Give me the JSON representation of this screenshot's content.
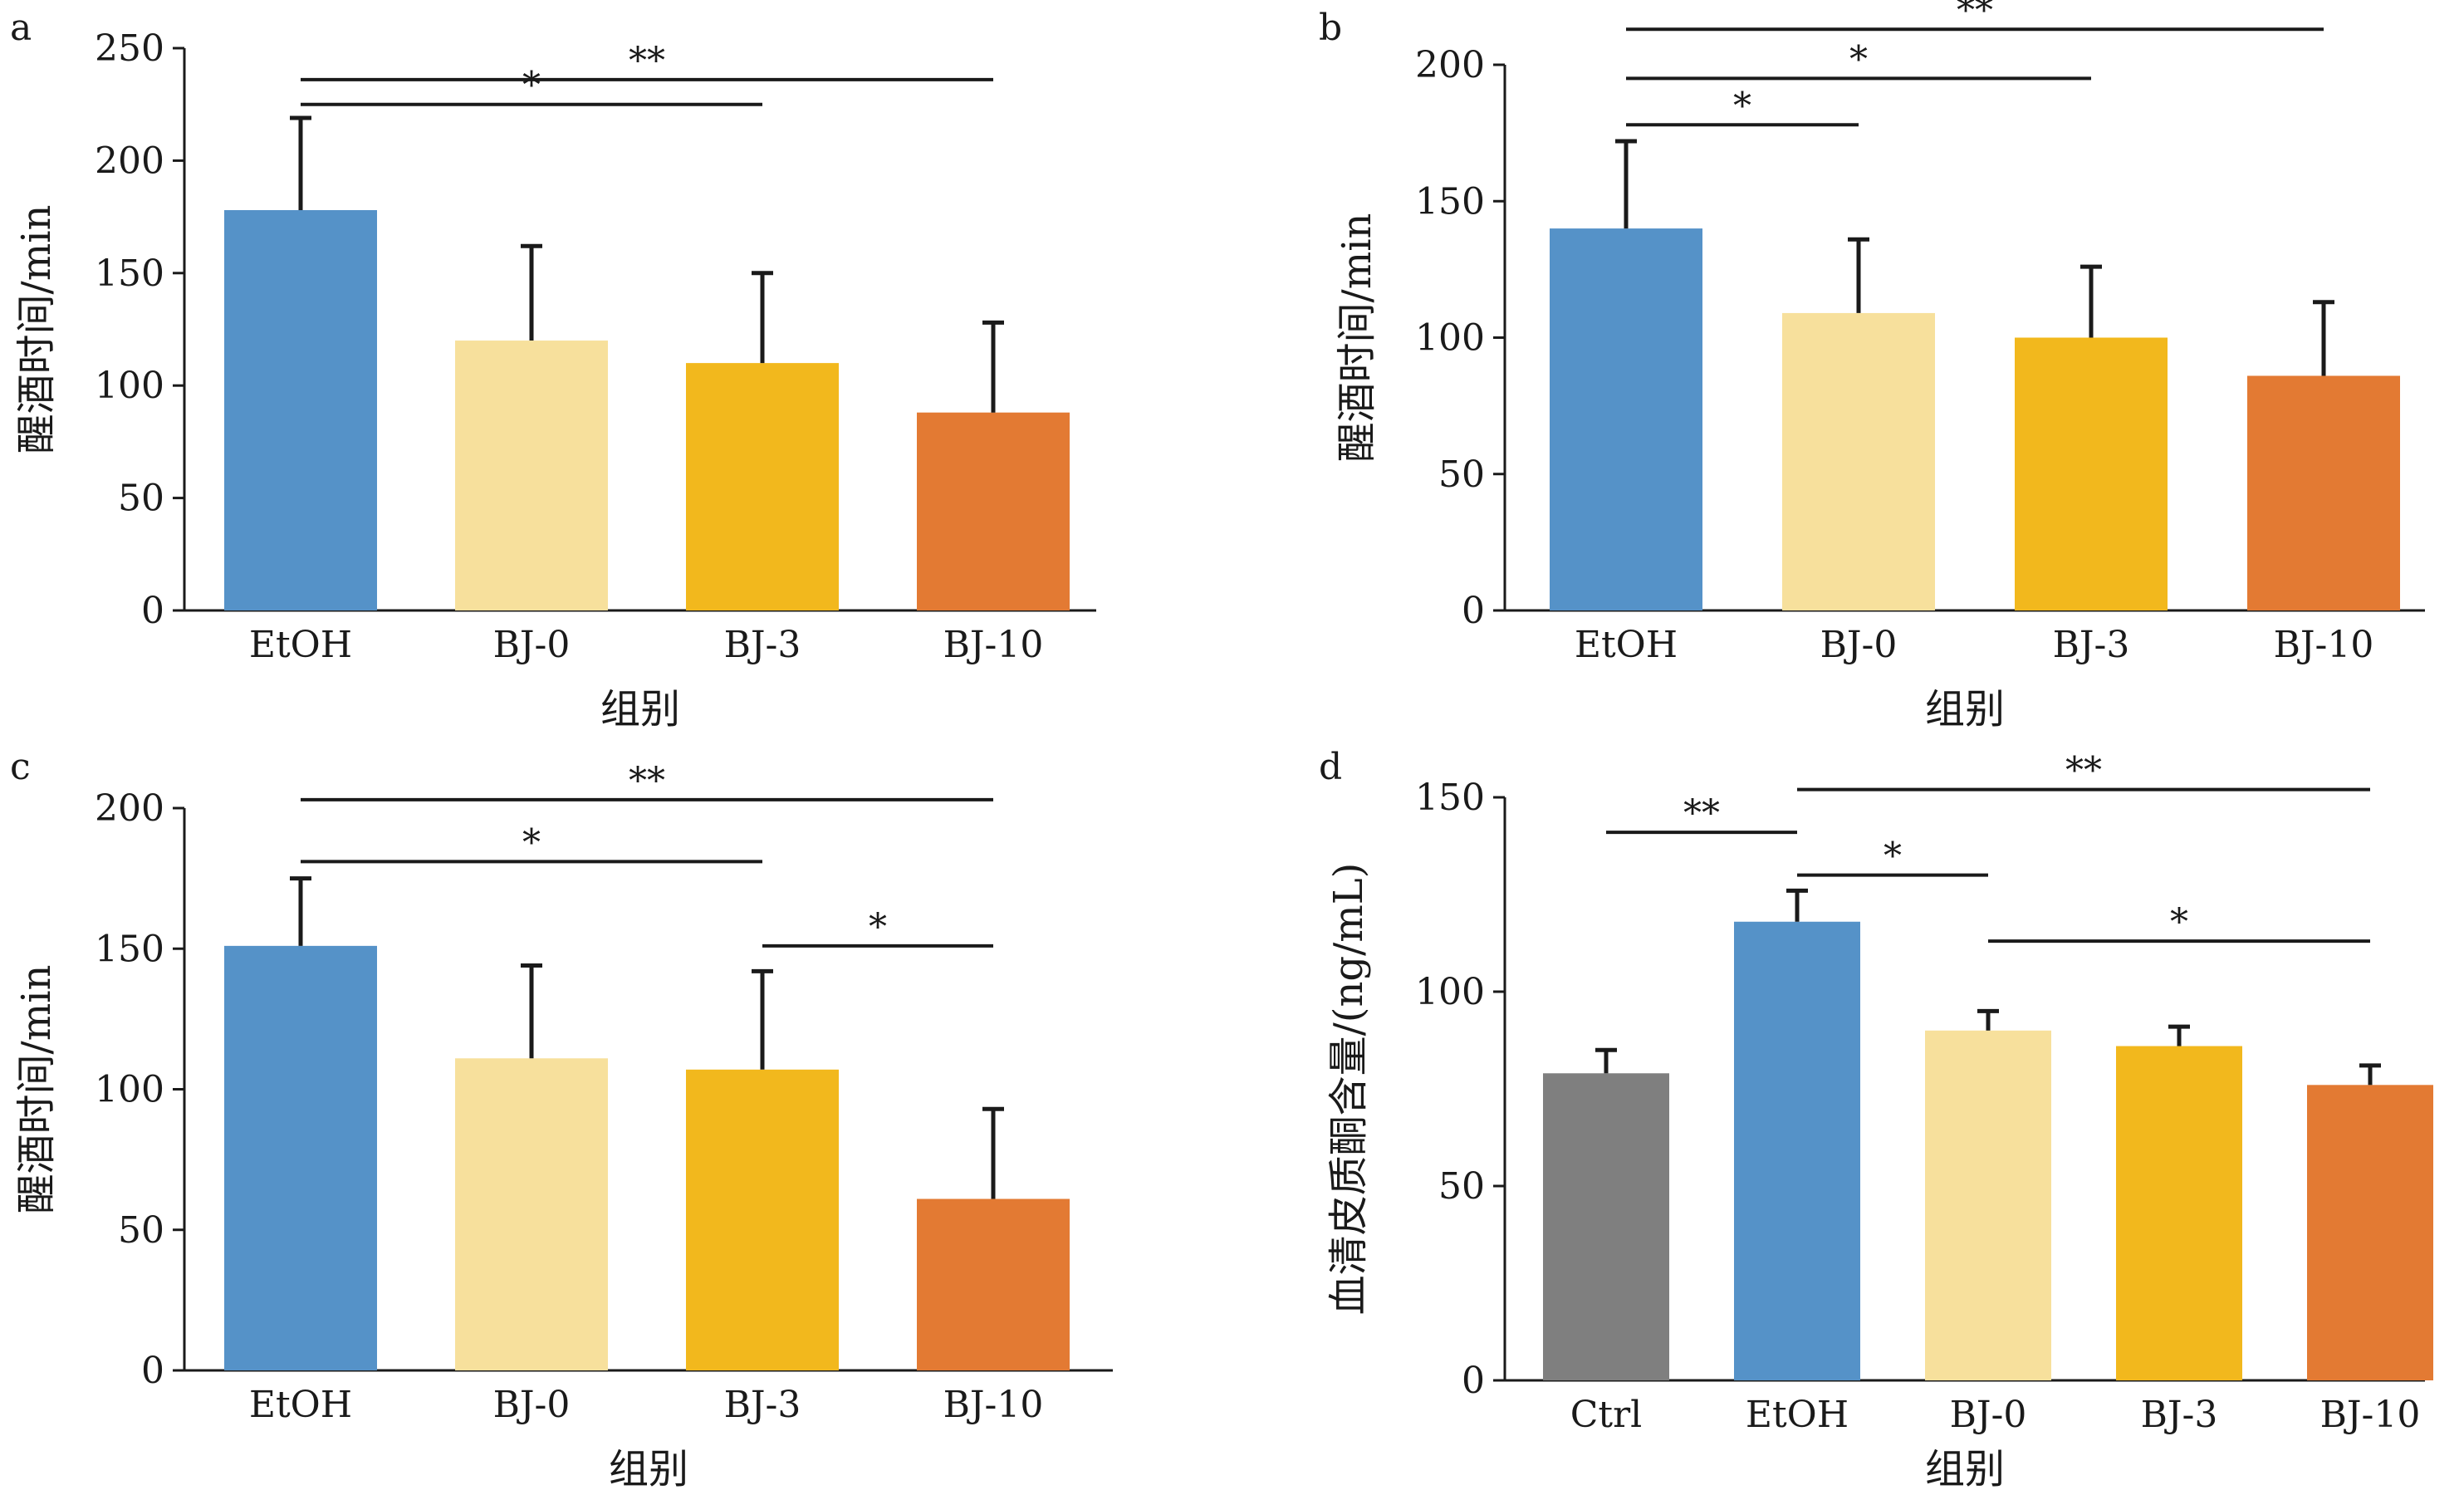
{
  "chart_data": [
    {
      "type": "bar",
      "panel_label": "a",
      "categories": [
        "EtOH",
        "BJ-0",
        "BJ-3",
        "BJ-10"
      ],
      "values": [
        178,
        120,
        110,
        88
      ],
      "errors": [
        41,
        42,
        40,
        40
      ],
      "bar_colors": [
        "#5592c8",
        "#f7e09c",
        "#f2b81d",
        "#e37a33"
      ],
      "xlabel": "组别",
      "ylabel": "醒酒时间/min",
      "ylim": [
        0,
        250
      ],
      "yticks": [
        0,
        50,
        100,
        150,
        200,
        250
      ],
      "significance": [
        {
          "from": 0,
          "to": 3,
          "label": "**",
          "y": 236
        },
        {
          "from": 0,
          "to": 2,
          "label": "*",
          "y": 225
        }
      ]
    },
    {
      "type": "bar",
      "panel_label": "b",
      "categories": [
        "EtOH",
        "BJ-0",
        "BJ-3",
        "BJ-10"
      ],
      "values": [
        140,
        109,
        100,
        86
      ],
      "errors": [
        32,
        27,
        26,
        27
      ],
      "bar_colors": [
        "#5592c8",
        "#f7e09c",
        "#f2b81d",
        "#e37a33"
      ],
      "xlabel": "组别",
      "ylabel": "醒酒时间/min",
      "ylim": [
        0,
        200
      ],
      "yticks": [
        0,
        50,
        100,
        150,
        200
      ],
      "significance": [
        {
          "from": 0,
          "to": 3,
          "label": "**",
          "y": 213
        },
        {
          "from": 0,
          "to": 2,
          "label": "*",
          "y": 195
        },
        {
          "from": 0,
          "to": 1,
          "label": "*",
          "y": 178
        }
      ]
    },
    {
      "type": "bar",
      "panel_label": "c",
      "categories": [
        "EtOH",
        "BJ-0",
        "BJ-3",
        "BJ-10"
      ],
      "values": [
        151,
        111,
        107,
        61
      ],
      "errors": [
        24,
        33,
        35,
        32
      ],
      "bar_colors": [
        "#5592c8",
        "#f7e09c",
        "#f2b81d",
        "#e37a33"
      ],
      "xlabel": "组别",
      "ylabel": "醒酒时间/min",
      "ylim": [
        0,
        200
      ],
      "yticks": [
        0,
        50,
        100,
        150,
        200
      ],
      "significance": [
        {
          "from": 0,
          "to": 3,
          "label": "**",
          "y": 203
        },
        {
          "from": 0,
          "to": 2,
          "label": "*",
          "y": 181
        },
        {
          "from": 2,
          "to": 3,
          "label": "*",
          "y": 151
        }
      ]
    },
    {
      "type": "bar",
      "panel_label": "d",
      "categories": [
        "Ctrl",
        "EtOH",
        "BJ-0",
        "BJ-3",
        "BJ-10"
      ],
      "values": [
        79,
        118,
        90,
        86,
        76
      ],
      "errors": [
        6,
        8,
        5,
        5,
        5
      ],
      "bar_colors": [
        "#7f7f7f",
        "#5592c8",
        "#f7e09c",
        "#f2b81d",
        "#e37a33"
      ],
      "xlabel": "组别",
      "ylabel": "血清皮质酮含量/(ng/mL)",
      "ylim": [
        0,
        150
      ],
      "yticks": [
        0,
        50,
        100,
        150
      ],
      "significance": [
        {
          "from": 1,
          "to": 4,
          "label": "**",
          "y": 152
        },
        {
          "from": 0,
          "to": 1,
          "label": "**",
          "y": 141
        },
        {
          "from": 1,
          "to": 2,
          "label": "*",
          "y": 130
        },
        {
          "from": 2,
          "to": 4,
          "label": "*",
          "y": 113
        }
      ]
    }
  ]
}
